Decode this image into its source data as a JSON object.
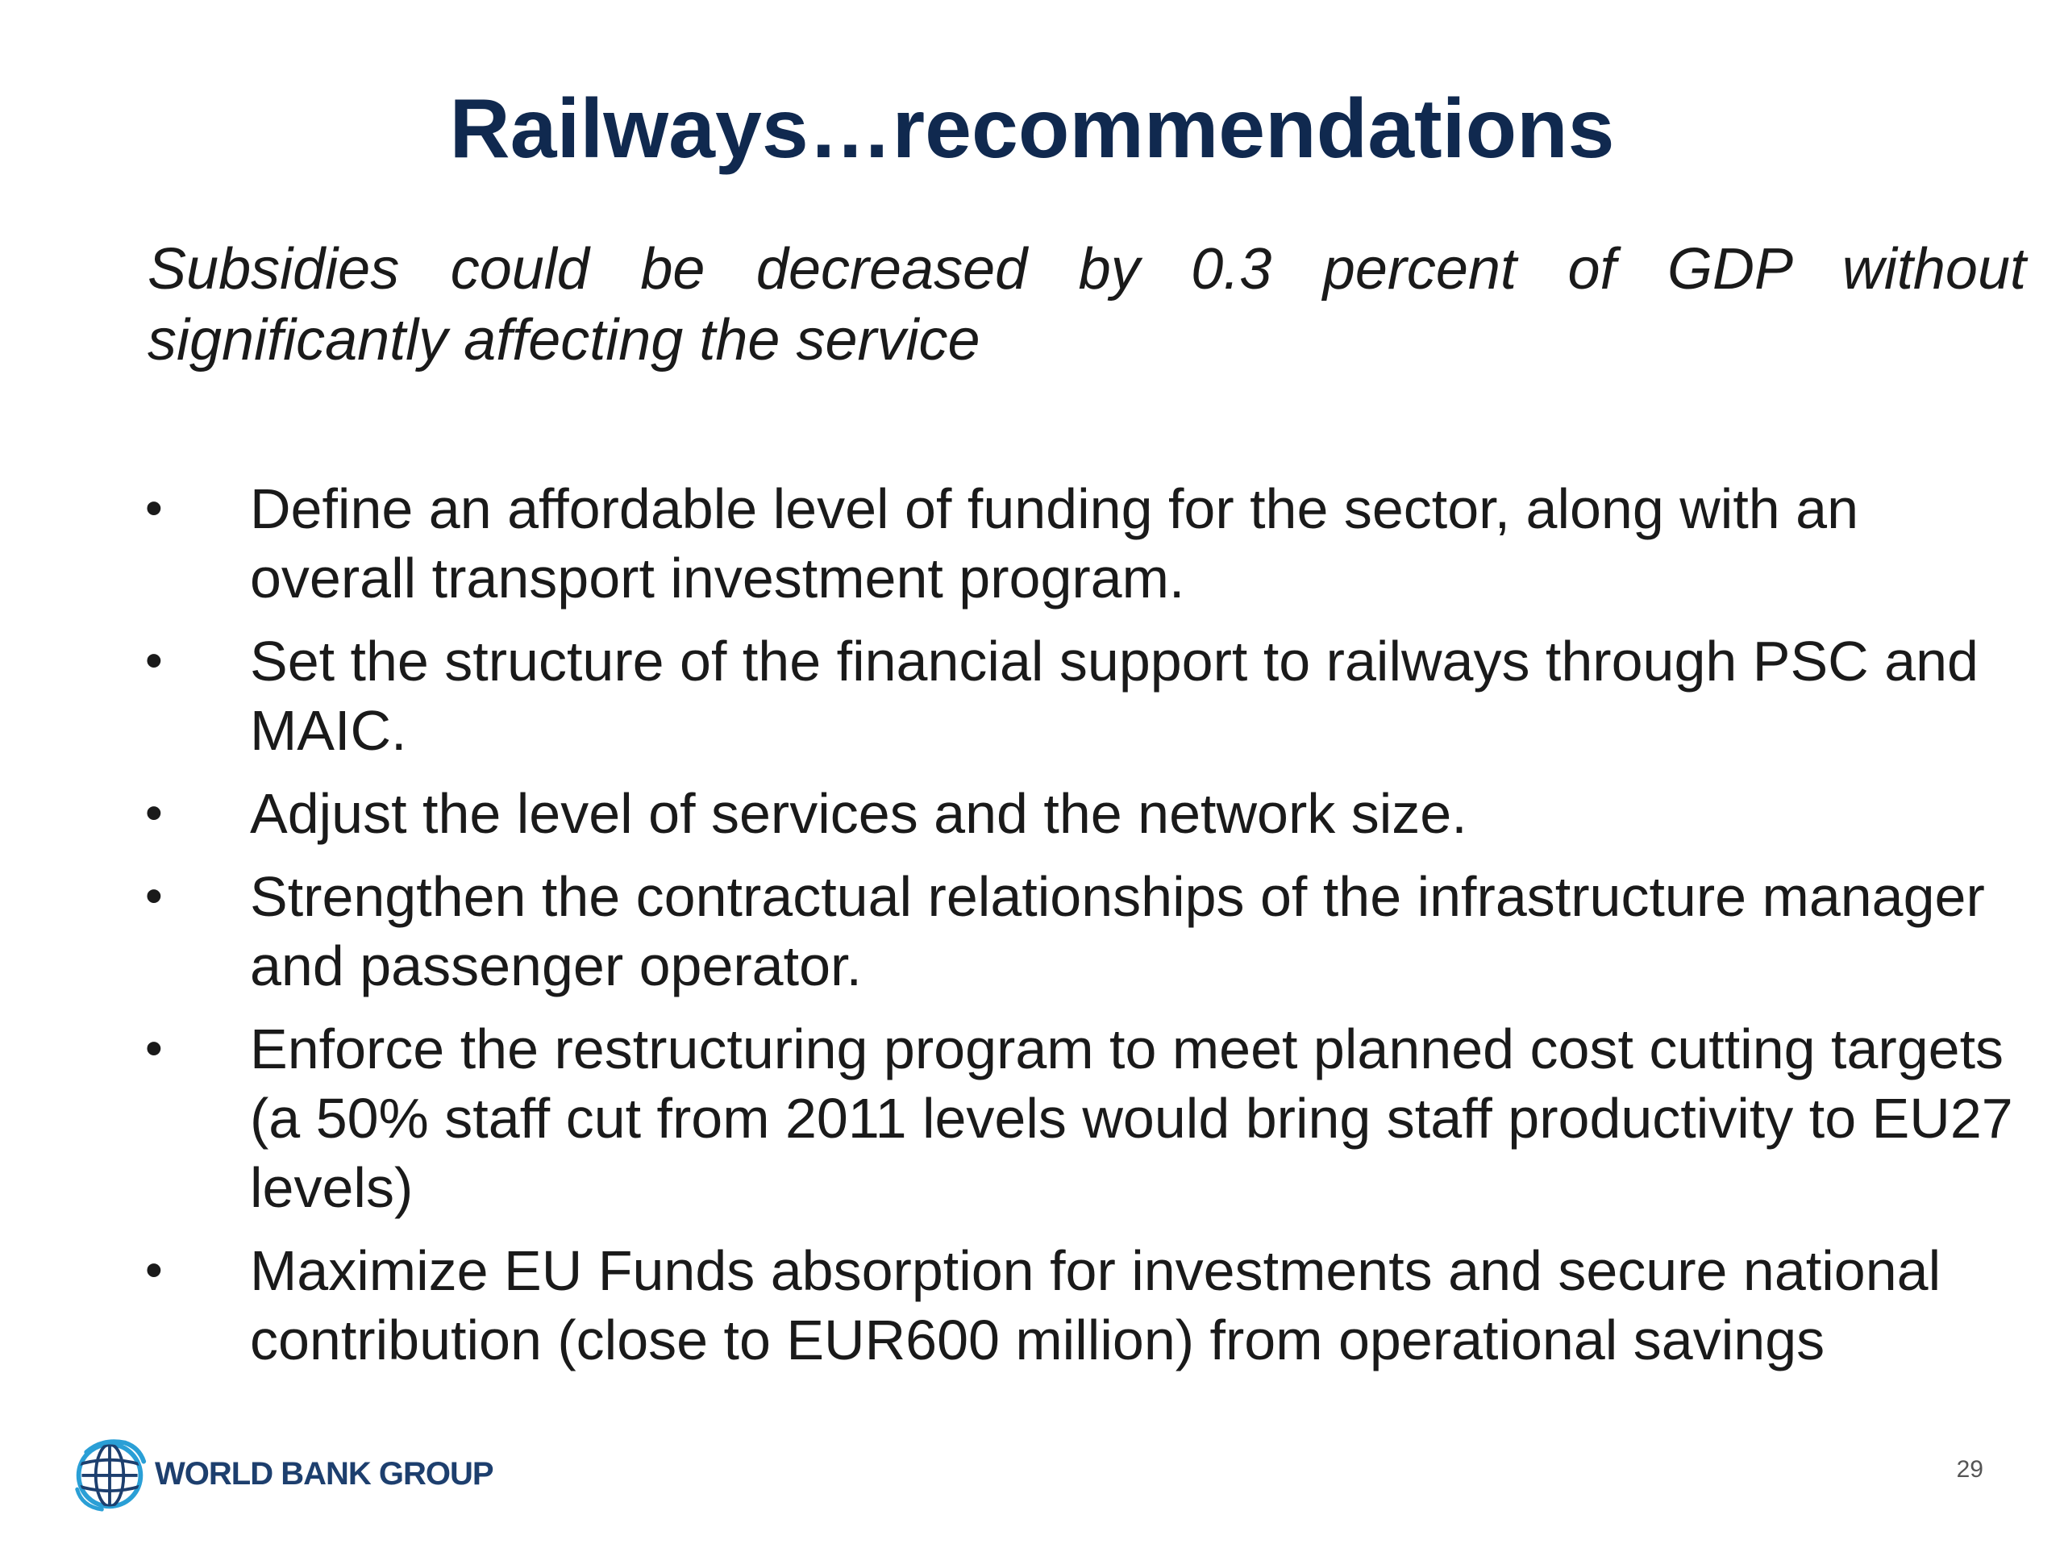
{
  "slide": {
    "title": "Railways…recommendations",
    "intro": "Subsidies could be decreased by 0.3 percent of GDP without significantly affecting the service",
    "bullet_symbol": "•",
    "bullets": [
      {
        "text": "Define an affordable level of funding for the sector, along with an overall transport investment program."
      },
      {
        "text": "Set the structure of the financial support to railways through PSC and MAIC."
      },
      {
        "text": "Adjust the level of services and the network size."
      },
      {
        "text": "Strengthen the contractual relationships of the infrastructure manager and passenger operator."
      },
      {
        "text": "Enforce the restructuring program to meet planned cost cutting targets (a 50% staff cut from 2011 levels would bring staff productivity to EU27 levels)"
      },
      {
        "text": "Maximize EU Funds absorption for investments and secure national contribution (close to EUR600 million) from operational savings"
      }
    ]
  },
  "footer": {
    "logo_icon": "globe-icon",
    "logo_text": "WORLD BANK GROUP",
    "page_number": "29"
  },
  "colors": {
    "title": "#10294f",
    "body_text": "#1a1a1a",
    "logo_blue": "#1d3f6e",
    "logo_globe": "#2a9fd6"
  }
}
